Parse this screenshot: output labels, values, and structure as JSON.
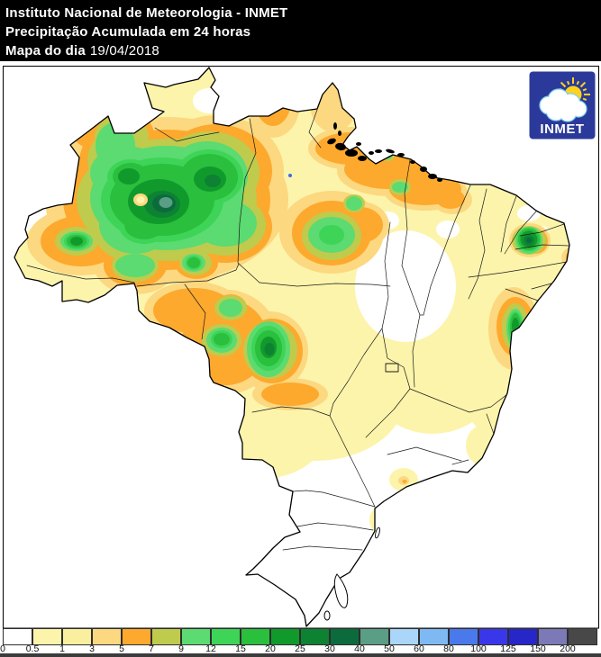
{
  "header": {
    "line1": "Instituto Nacional de Meteorologia - INMET",
    "line2": "Precipitação Acumulada em 24 horas",
    "line3_label": "Mapa do dia",
    "line3_date": "19/04/2018"
  },
  "logo": {
    "text": "INMET",
    "bg_color": "#2B3A9A",
    "sun_color": "#FFD21E",
    "cloud_outline_color": "#7CCFF0"
  },
  "map": {
    "country": "Brasil",
    "water_dot_color": "#3E6AE8",
    "border_color": "#000000",
    "state_border_color": "#1a1a1a"
  },
  "legend": {
    "tick_labels": [
      "0",
      "0.5",
      "1",
      "3",
      "5",
      "7",
      "9",
      "12",
      "15",
      "20",
      "25",
      "30",
      "40",
      "50",
      "60",
      "80",
      "100",
      "125",
      "150",
      "200"
    ],
    "colors": [
      "#FFFFFF",
      "#FCF4AB",
      "#FAEF9E",
      "#FCD880",
      "#FCA92D",
      "#BFCB4D",
      "#5BDB71",
      "#3ED457",
      "#2ABF3C",
      "#119A2C",
      "#0D8233",
      "#0B6B3C",
      "#5A9E86",
      "#A9D6F9",
      "#7FB9F4",
      "#4A79EC",
      "#3A37EB",
      "#2626C9",
      "#7B79B6",
      "#484848"
    ]
  }
}
